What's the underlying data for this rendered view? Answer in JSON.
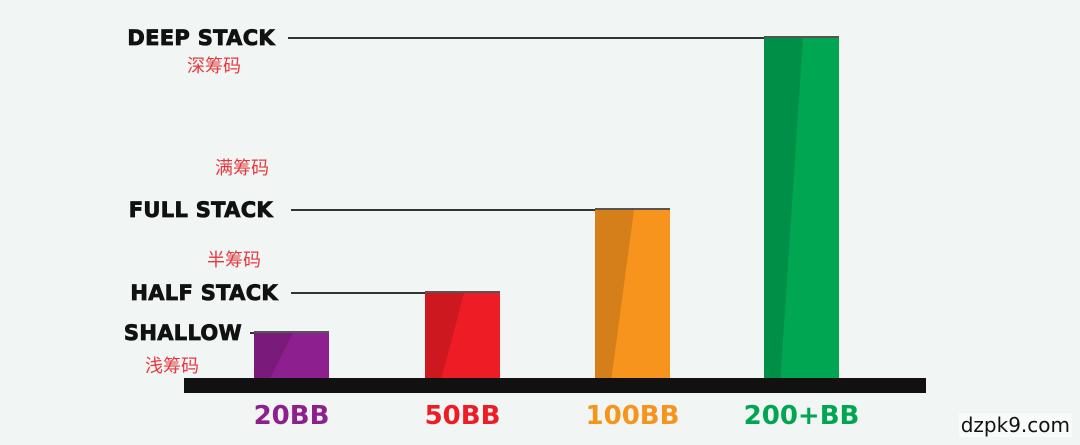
{
  "chart_data": {
    "type": "bar",
    "categories": [
      "20BB",
      "50BB",
      "100BB",
      "200+BB"
    ],
    "values": [
      20,
      50,
      100,
      200
    ],
    "colors": [
      "#8e1f8f",
      "#ee1c24",
      "#f7941d",
      "#00a651"
    ],
    "reference_lines": [
      {
        "label": "SHALLOW",
        "sublabel": "浅筹码",
        "value": 20
      },
      {
        "label": "HALF STACK",
        "sublabel": "半筹码",
        "value": 50
      },
      {
        "label": "FULL STACK",
        "sublabel": "满筹码",
        "value": 100
      },
      {
        "label": "DEEP STACK",
        "sublabel": "深筹码",
        "value": 200
      }
    ],
    "baseline_color": "#111111",
    "line_color": "#333333"
  },
  "watermark": "dzpk9.com"
}
